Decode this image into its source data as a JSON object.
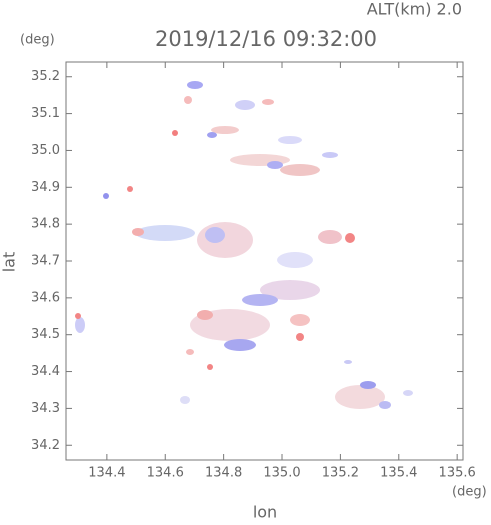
{
  "chart_data": {
    "type": "map",
    "title": "2019/12/16 09:32:00",
    "subtitle": "ALT(km) 2.0",
    "xlabel": "lon",
    "ylabel": "lat",
    "xunit": "(deg)",
    "yunit": "(deg)",
    "xlim": [
      134.26,
      135.62
    ],
    "ylim": [
      34.16,
      35.24
    ],
    "xticks": [
      134.4,
      134.6,
      134.8,
      {
        "value": 135,
        "label": "135.0"
      },
      135.2,
      135.4,
      135.6
    ],
    "yticks": [
      34.2,
      34.3,
      34.4,
      34.5,
      34.6,
      34.7,
      34.8,
      34.9,
      {
        "value": 35,
        "label": "35.0"
      },
      35.1,
      35.2
    ]
  }
}
